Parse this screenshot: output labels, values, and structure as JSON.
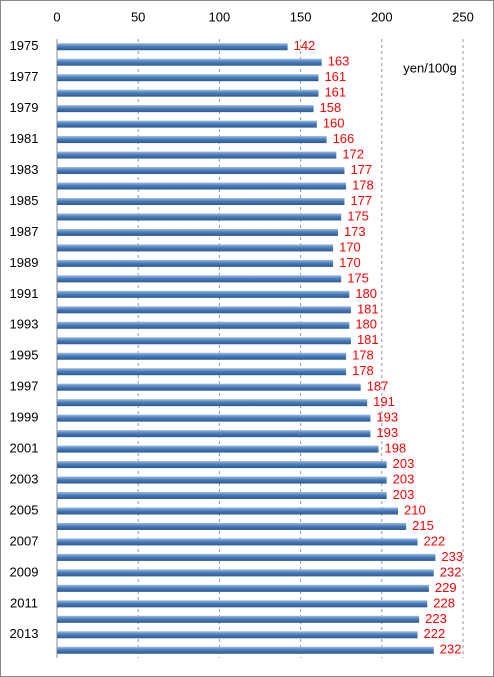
{
  "chart_data": {
    "type": "bar",
    "orientation": "horizontal",
    "annotation": "yen/100g",
    "categories": [
      "1975",
      null,
      "1977",
      null,
      "1979",
      null,
      "1981",
      null,
      "1983",
      null,
      "1985",
      null,
      "1987",
      null,
      "1989",
      null,
      "1991",
      null,
      "1993",
      null,
      "1995",
      null,
      "1997",
      null,
      "1999",
      null,
      "2001",
      null,
      "2003",
      null,
      "2005",
      null,
      "2007",
      null,
      "2009",
      null,
      "2011",
      null,
      "2013",
      null
    ],
    "values": [
      142,
      163,
      161,
      161,
      158,
      160,
      166,
      172,
      177,
      178,
      177,
      175,
      173,
      170,
      170,
      175,
      180,
      181,
      180,
      181,
      178,
      178,
      187,
      191,
      193,
      193,
      198,
      203,
      203,
      203,
      210,
      215,
      222,
      233,
      232,
      229,
      228,
      223,
      222,
      232
    ],
    "color": "#4a7ebb",
    "label_color": "#ff0000",
    "xlim": [
      0,
      250
    ],
    "xticks": [
      0,
      50,
      100,
      150,
      200,
      250
    ],
    "grid": true
  }
}
